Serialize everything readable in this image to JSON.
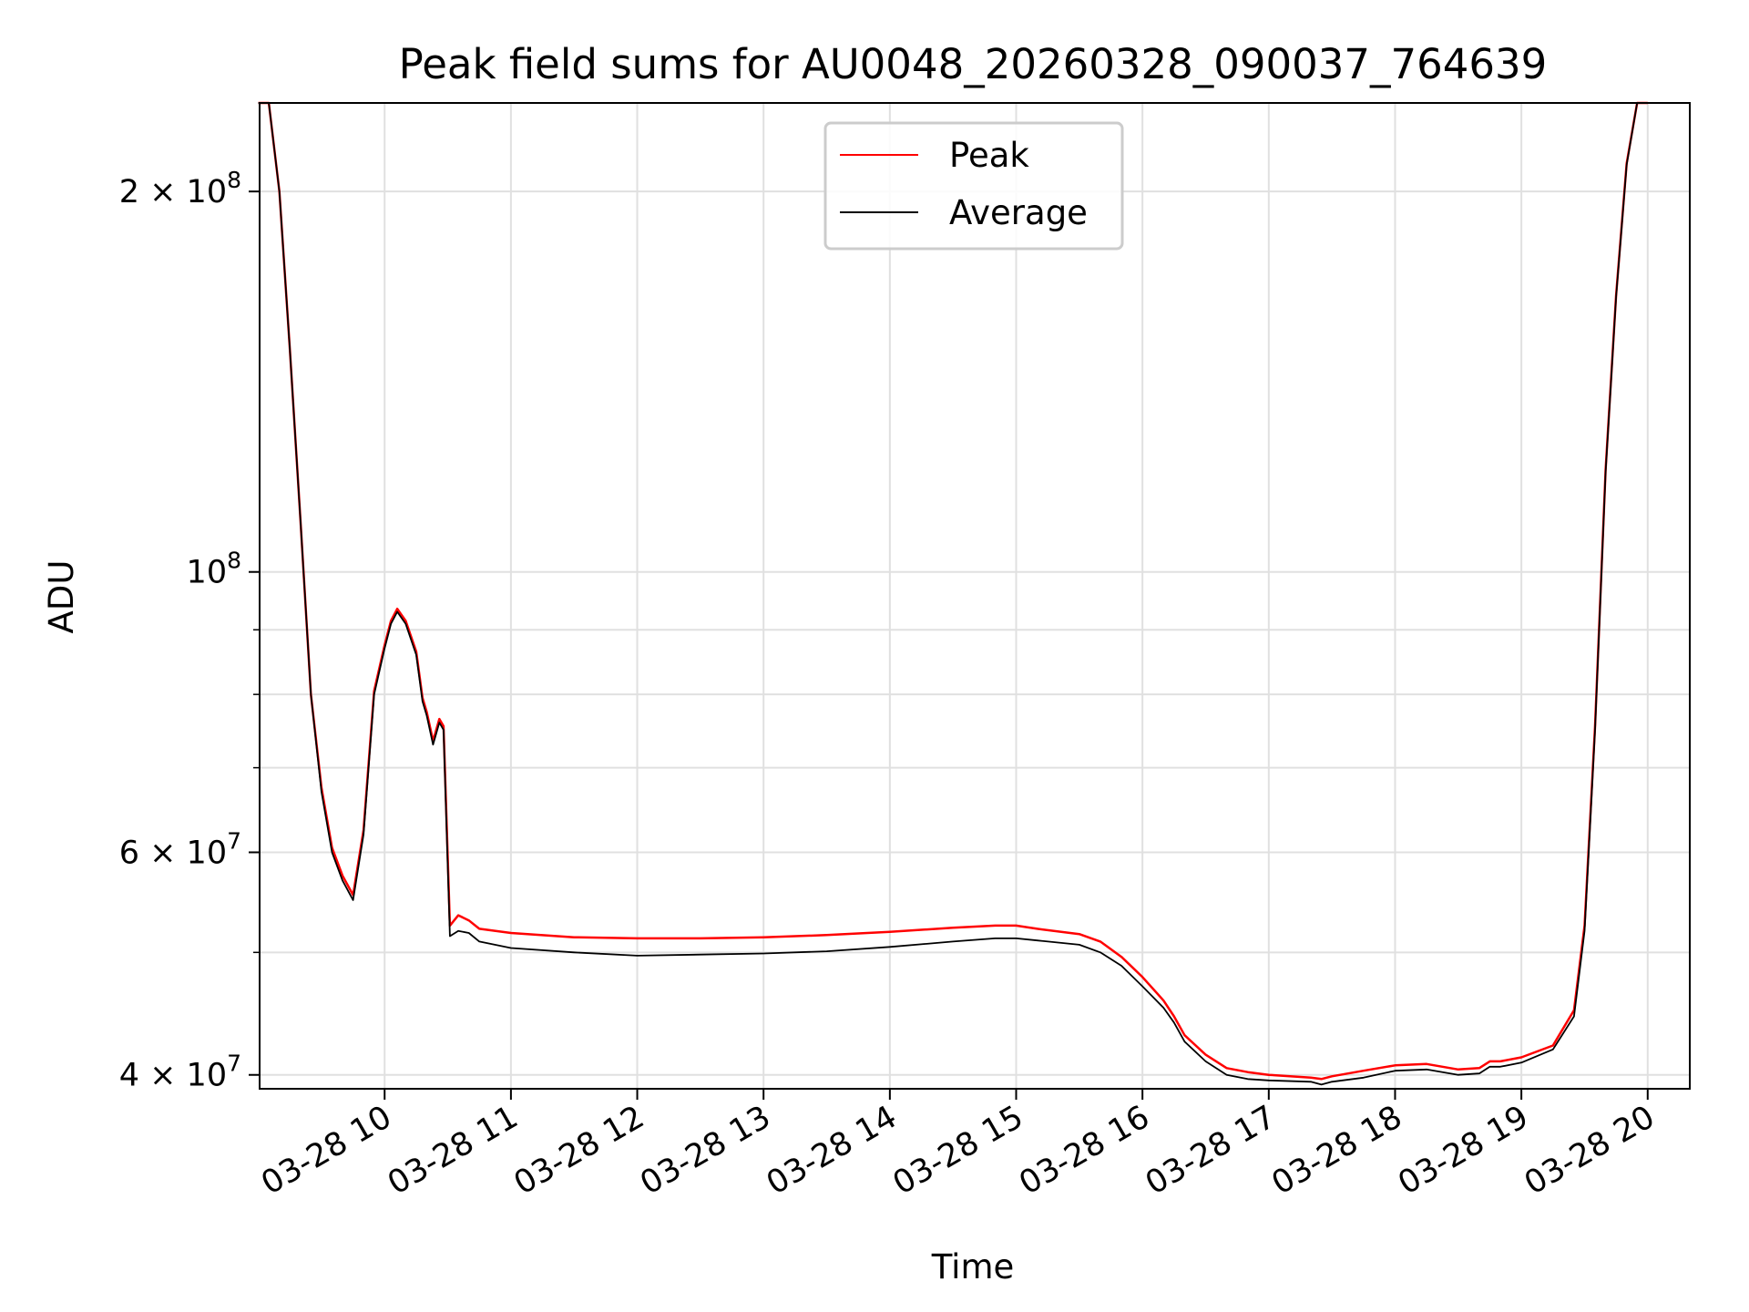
{
  "chart_data": {
    "type": "line",
    "title": "Peak field sums for AU0048_20260328_090037_764639",
    "xlabel": "Time",
    "ylabel": "ADU",
    "yscale": "log",
    "ylim": [
      39000000,
      235000000
    ],
    "xlim": [
      "2026-03-28 09:00:37",
      "2026-03-28 20:20:00"
    ],
    "grid": true,
    "legend": {
      "placement": "upper center",
      "entries": [
        "Peak",
        "Average"
      ]
    },
    "colors": {
      "Peak": "#ff0000",
      "Average": "#000000",
      "grid": "#e0e0e0"
    },
    "x_ticks": [
      "03-28 10",
      "03-28 11",
      "03-28 12",
      "03-28 13",
      "03-28 14",
      "03-28 15",
      "03-28 16",
      "03-28 17",
      "03-28 18",
      "03-28 19",
      "03-28 20"
    ],
    "y_ticks": [
      {
        "value": 40000000,
        "mantissa": "4",
        "exponent": "7"
      },
      {
        "value": 60000000,
        "mantissa": "6",
        "exponent": "7"
      },
      {
        "value": 100000000,
        "mantissa": "",
        "exponent": "8"
      },
      {
        "value": 200000000,
        "mantissa": "2",
        "exponent": "8"
      }
    ],
    "x_time_values": [
      "09:00",
      "09:05",
      "09:10",
      "09:15",
      "09:20",
      "09:25",
      "09:30",
      "09:35",
      "09:40",
      "09:45",
      "09:50",
      "09:55",
      "10:00",
      "10:03",
      "10:06",
      "10:10",
      "10:15",
      "10:18",
      "10:20",
      "10:23",
      "10:26",
      "10:28",
      "10:31",
      "10:35",
      "10:40",
      "10:45",
      "11:00",
      "11:30",
      "12:00",
      "12:30",
      "13:00",
      "13:30",
      "14:00",
      "14:30",
      "14:50",
      "15:00",
      "15:10",
      "15:30",
      "15:40",
      "15:50",
      "16:00",
      "16:10",
      "16:15",
      "16:20",
      "16:30",
      "16:40",
      "16:50",
      "17:00",
      "17:20",
      "17:25",
      "17:30",
      "17:45",
      "18:00",
      "18:15",
      "18:30",
      "18:40",
      "18:45",
      "18:50",
      "19:00",
      "19:15",
      "19:25",
      "19:30",
      "19:35",
      "19:40",
      "19:45",
      "19:50",
      "19:55",
      "20:00"
    ],
    "series": [
      {
        "name": "Average",
        "values": [
          235000000,
          235000000,
          200000000,
          150000000,
          110000000,
          80000000,
          67000000,
          60000000,
          57000000,
          55000000,
          62000000,
          80000000,
          87000000,
          91000000,
          93000000,
          91000000,
          86000000,
          79000000,
          77000000,
          73000000,
          76000000,
          75000000,
          51500000,
          52000000,
          51800000,
          51000000,
          50400000,
          50000000,
          49700000,
          49800000,
          49900000,
          50100000,
          50500000,
          51000000,
          51300000,
          51300000,
          51100000,
          50700000,
          50000000,
          48800000,
          47000000,
          45200000,
          44000000,
          42500000,
          41000000,
          40000000,
          39700000,
          39600000,
          39500000,
          39300000,
          39500000,
          39800000,
          40300000,
          40400000,
          40000000,
          40100000,
          40600000,
          40600000,
          40900000,
          41900000,
          44500000,
          52000000,
          75000000,
          120000000,
          165000000,
          210000000,
          235000000,
          235000000
        ]
      },
      {
        "name": "Peak",
        "values": [
          235000000,
          235000000,
          200000000,
          150000000,
          110000000,
          80000000,
          67500000,
          60500000,
          57500000,
          55500000,
          62500000,
          80500000,
          87500000,
          91500000,
          93500000,
          91500000,
          86500000,
          79500000,
          77500000,
          73500000,
          76500000,
          75500000,
          52500000,
          53500000,
          53000000,
          52200000,
          51800000,
          51400000,
          51300000,
          51300000,
          51400000,
          51600000,
          51900000,
          52300000,
          52500000,
          52500000,
          52200000,
          51700000,
          51000000,
          49600000,
          47800000,
          45800000,
          44500000,
          43000000,
          41500000,
          40500000,
          40200000,
          40000000,
          39800000,
          39700000,
          39900000,
          40300000,
          40700000,
          40800000,
          40400000,
          40500000,
          41000000,
          41000000,
          41300000,
          42200000,
          45000000,
          52500000,
          75500000,
          120500000,
          165500000,
          210500000,
          235000000,
          235000000
        ]
      }
    ]
  }
}
